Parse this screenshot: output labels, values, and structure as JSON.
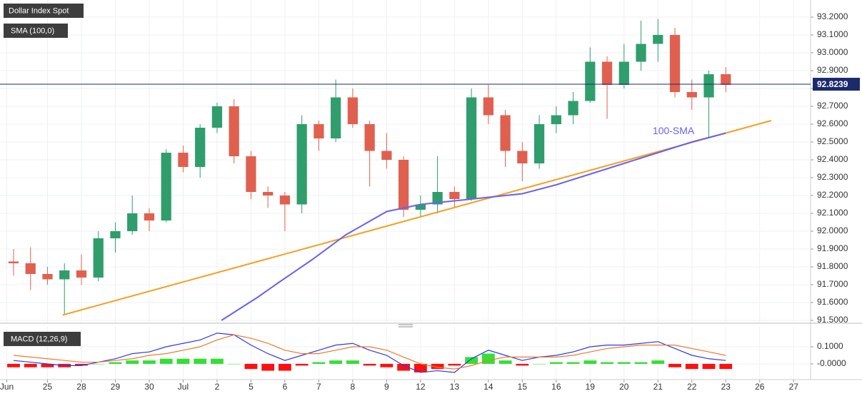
{
  "chart_data": [
    {
      "type": "candlestick",
      "title": "Dollar Index Spot",
      "x": [
        0.2,
        0.7,
        1.2,
        1.7,
        2.2,
        2.7,
        3.2,
        3.7,
        4.2,
        4.7,
        5.2,
        5.7,
        6.2,
        6.7,
        7.2,
        7.7,
        8.2,
        8.7,
        9.2,
        9.7,
        10.2,
        10.7,
        11.2,
        11.7,
        12.2,
        12.7,
        13.2,
        13.7,
        14.2,
        14.7,
        15.2,
        15.7,
        16.2,
        16.7,
        17.2,
        17.7,
        18.2,
        18.7,
        19.2,
        19.7,
        20.2,
        20.7,
        21.2
      ],
      "open": [
        91.83,
        91.82,
        91.76,
        91.73,
        91.78,
        91.74,
        91.96,
        92.0,
        92.1,
        92.06,
        92.44,
        92.36,
        92.58,
        92.7,
        92.42,
        92.22,
        92.2,
        92.15,
        92.6,
        92.52,
        92.75,
        92.6,
        92.45,
        92.4,
        92.12,
        92.15,
        92.22,
        92.18,
        92.75,
        92.65,
        92.45,
        92.38,
        92.6,
        92.65,
        92.73,
        92.95,
        92.82,
        92.95,
        93.05,
        93.1,
        92.78,
        92.75,
        92.88
      ],
      "high": [
        91.9,
        91.91,
        91.8,
        91.82,
        91.87,
        92.0,
        92.05,
        92.2,
        92.13,
        92.46,
        92.48,
        92.6,
        92.72,
        92.74,
        92.45,
        92.25,
        92.22,
        92.65,
        92.62,
        92.85,
        92.8,
        92.62,
        92.55,
        92.42,
        92.2,
        92.42,
        92.25,
        92.8,
        92.82,
        92.68,
        92.5,
        92.65,
        92.7,
        92.78,
        93.03,
        92.98,
        93.05,
        93.18,
        93.19,
        93.14,
        92.85,
        92.9,
        92.92
      ],
      "low": [
        91.75,
        91.67,
        91.7,
        91.53,
        91.7,
        91.72,
        91.88,
        91.98,
        92.0,
        92.05,
        92.33,
        92.3,
        92.55,
        92.38,
        92.18,
        92.13,
        92.0,
        92.1,
        92.45,
        92.5,
        92.58,
        92.25,
        92.35,
        92.08,
        92.08,
        92.1,
        92.13,
        92.17,
        92.6,
        92.36,
        92.28,
        92.35,
        92.55,
        92.6,
        92.72,
        92.63,
        92.8,
        92.9,
        92.95,
        92.75,
        92.68,
        92.52,
        92.78
      ],
      "close": [
        91.82,
        91.76,
        91.73,
        91.78,
        91.74,
        91.96,
        92.0,
        92.1,
        92.06,
        92.44,
        92.36,
        92.58,
        92.7,
        92.42,
        92.22,
        92.2,
        92.15,
        92.6,
        92.52,
        92.75,
        92.6,
        92.45,
        92.4,
        92.12,
        92.15,
        92.22,
        92.18,
        92.75,
        92.65,
        92.45,
        92.38,
        92.6,
        92.65,
        92.73,
        92.95,
        92.82,
        92.95,
        93.05,
        93.1,
        92.78,
        92.75,
        92.88,
        92.82
      ],
      "up_color": "#2f9e6c",
      "down_color": "#e0604f",
      "xlim": [
        -0.2,
        23.7
      ],
      "ylim": [
        91.488,
        93.296
      ],
      "yticks": [
        {
          "value": 91.5,
          "label": "91.5000"
        },
        {
          "value": 91.6,
          "label": "91.6000"
        },
        {
          "value": 91.7,
          "label": "91.7000"
        },
        {
          "value": 91.8,
          "label": "91.8000"
        },
        {
          "value": 91.9,
          "label": "91.9000"
        },
        {
          "value": 92.0,
          "label": "92.0000"
        },
        {
          "value": 92.1,
          "label": "92.1000"
        },
        {
          "value": 92.2,
          "label": "92.2000"
        },
        {
          "value": 92.3,
          "label": "92.3000"
        },
        {
          "value": 92.4,
          "label": "92.4000"
        },
        {
          "value": 92.5,
          "label": "92.5000"
        },
        {
          "value": 92.6,
          "label": "92.6000"
        },
        {
          "value": 92.7,
          "label": "92.7000"
        },
        {
          "value": 92.8,
          "label": "92.8000"
        },
        {
          "value": 92.9,
          "label": "92.9000"
        },
        {
          "value": 93.0,
          "label": "93.0000"
        },
        {
          "value": 93.1,
          "label": "93.1000"
        },
        {
          "value": 93.2,
          "label": "93.2000"
        }
      ],
      "last_price": 92.8239,
      "last_price_color": "#1b2a6b",
      "sma": {
        "name": "SMA (100,0)",
        "label": "100-SMA",
        "color": "#6a62f0",
        "x": [
          6.33,
          7.4,
          8.0,
          9.0,
          10.0,
          11.2,
          12.2,
          13.2,
          14.2,
          15.2,
          16.2,
          17.2,
          18.2,
          19.2,
          20.2,
          21.2
        ],
        "values": [
          91.5,
          91.63,
          91.71,
          91.84,
          91.98,
          92.11,
          92.15,
          92.17,
          92.19,
          92.21,
          92.26,
          92.32,
          92.38,
          92.44,
          92.5,
          92.55
        ]
      },
      "trend_line": {
        "color": "#f5a020",
        "x": [
          1.65,
          22.54
        ],
        "y": [
          91.53,
          92.62
        ]
      }
    },
    {
      "type": "macd",
      "title": "MACD (12,26,9)",
      "x": [
        0.2,
        0.7,
        1.2,
        1.7,
        2.2,
        2.7,
        3.2,
        3.7,
        4.2,
        4.7,
        5.2,
        5.7,
        6.2,
        6.7,
        7.2,
        7.7,
        8.2,
        8.7,
        9.2,
        9.7,
        10.2,
        10.7,
        11.2,
        11.7,
        12.2,
        12.7,
        13.2,
        13.7,
        14.2,
        14.7,
        15.2,
        15.7,
        16.2,
        16.7,
        17.2,
        17.7,
        18.2,
        18.7,
        19.2,
        19.7,
        20.2,
        20.7,
        21.2
      ],
      "macd": [
        0.02,
        0.01,
        0.0,
        -0.01,
        -0.01,
        0.01,
        0.03,
        0.06,
        0.07,
        0.1,
        0.12,
        0.14,
        0.18,
        0.17,
        0.11,
        0.06,
        0.02,
        0.05,
        0.08,
        0.11,
        0.12,
        0.08,
        0.05,
        -0.01,
        -0.05,
        -0.04,
        -0.05,
        0.03,
        0.08,
        0.05,
        0.02,
        0.04,
        0.05,
        0.07,
        0.1,
        0.11,
        0.11,
        0.12,
        0.13,
        0.09,
        0.05,
        0.03,
        0.02
      ],
      "signal": [
        0.05,
        0.04,
        0.03,
        0.02,
        0.01,
        0.01,
        0.02,
        0.03,
        0.05,
        0.06,
        0.08,
        0.1,
        0.14,
        0.17,
        0.15,
        0.12,
        0.08,
        0.06,
        0.06,
        0.08,
        0.1,
        0.1,
        0.08,
        0.04,
        0.0,
        -0.02,
        -0.03,
        -0.01,
        0.02,
        0.04,
        0.04,
        0.04,
        0.04,
        0.05,
        0.07,
        0.09,
        0.1,
        0.11,
        0.11,
        0.11,
        0.09,
        0.07,
        0.05
      ],
      "histogram": [
        -0.02,
        -0.02,
        -0.02,
        -0.02,
        -0.01,
        0.0,
        0.01,
        0.02,
        0.02,
        0.03,
        0.03,
        0.03,
        0.03,
        0.0,
        -0.03,
        -0.04,
        -0.04,
        -0.01,
        0.01,
        0.02,
        0.02,
        -0.01,
        -0.02,
        -0.04,
        -0.05,
        -0.03,
        -0.01,
        0.04,
        0.06,
        0.02,
        -0.01,
        0.0,
        0.01,
        0.01,
        0.02,
        0.01,
        0.01,
        0.01,
        0.02,
        -0.02,
        -0.03,
        -0.03,
        -0.03
      ],
      "macd_color": "#2d3ae8",
      "signal_color": "#f07a2a",
      "positive_color": "#33e033",
      "negative_color": "#ff1010",
      "xlim": [
        -0.2,
        23.7
      ],
      "ylim": [
        -0.092,
        0.217
      ],
      "yticks": [
        {
          "value": 0.1,
          "label": "0.1000"
        },
        {
          "value": 0,
          "label": "-0.0000"
        }
      ],
      "xticks": [
        {
          "value": 0,
          "label": "Jun"
        },
        {
          "value": 1.2,
          "label": "25"
        },
        {
          "value": 2.2,
          "label": "28"
        },
        {
          "value": 3.2,
          "label": "29"
        },
        {
          "value": 4.2,
          "label": "30"
        },
        {
          "value": 5.2,
          "label": "Jul"
        },
        {
          "value": 6.2,
          "label": "2"
        },
        {
          "value": 7.2,
          "label": "5"
        },
        {
          "value": 8.2,
          "label": "6"
        },
        {
          "value": 9.2,
          "label": "7"
        },
        {
          "value": 10.2,
          "label": "8"
        },
        {
          "value": 11.2,
          "label": "9"
        },
        {
          "value": 12.2,
          "label": "12"
        },
        {
          "value": 13.2,
          "label": "13"
        },
        {
          "value": 14.2,
          "label": "14"
        },
        {
          "value": 15.2,
          "label": "15"
        },
        {
          "value": 16.2,
          "label": "16"
        },
        {
          "value": 17.2,
          "label": "19"
        },
        {
          "value": 18.2,
          "label": "20"
        },
        {
          "value": 19.2,
          "label": "21"
        },
        {
          "value": 20.2,
          "label": "22"
        },
        {
          "value": 21.2,
          "label": "23"
        },
        {
          "value": 22.2,
          "label": "26"
        },
        {
          "value": 23.2,
          "label": "27"
        }
      ]
    }
  ]
}
